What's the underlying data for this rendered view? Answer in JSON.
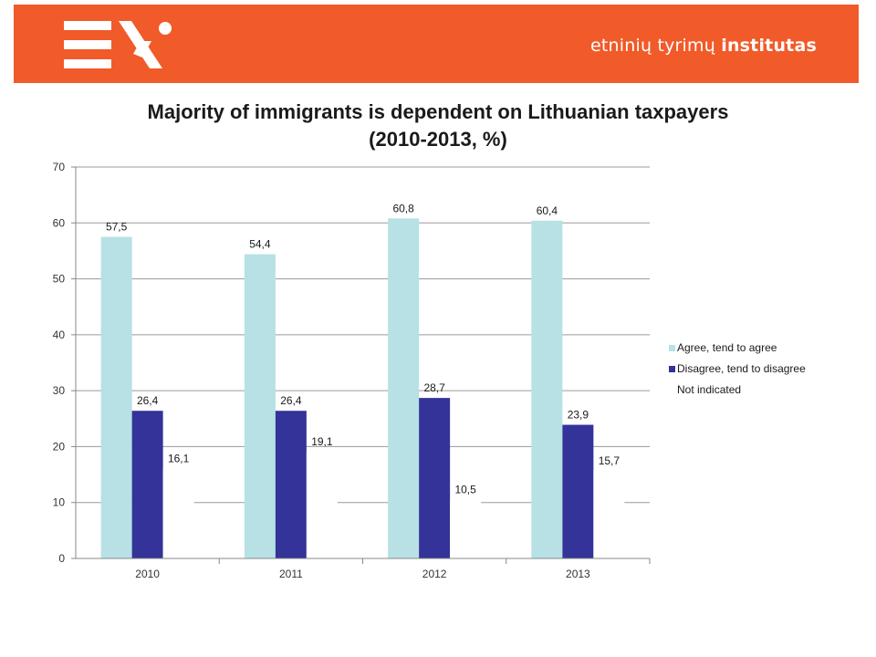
{
  "header": {
    "org_name_light": "etninių tyrimų",
    "org_name_bold": "institutas",
    "accent_color": "#f15a29",
    "logo": "EN-logo"
  },
  "chart_data": {
    "type": "bar",
    "title_line1": "Majority of immigrants is dependent on Lithuanian taxpayers",
    "title_line2": "(2010-2013, %)",
    "categories": [
      "2010",
      "2011",
      "2012",
      "2013"
    ],
    "ylim": [
      0,
      70
    ],
    "yticks": [
      0,
      10,
      20,
      30,
      40,
      50,
      60,
      70
    ],
    "grid": true,
    "legend_position": "right",
    "series": [
      {
        "name": "Agree, tend to agree",
        "values": [
          57.5,
          54.4,
          60.8,
          60.4
        ],
        "labels": [
          "57,5",
          "54,4",
          "60,8",
          "60,4"
        ],
        "color": "#b7e1e4"
      },
      {
        "name": "Disagree, tend to disagree",
        "values": [
          26.4,
          26.4,
          28.7,
          23.9
        ],
        "labels": [
          "26,4",
          "26,4",
          "28,7",
          "23,9"
        ],
        "color": "#333399"
      },
      {
        "name": "Not indicated",
        "values": [
          16.1,
          19.1,
          10.5,
          15.7
        ],
        "labels": [
          "16,1",
          "19,1",
          "10,5",
          "15,7"
        ],
        "color": "#ffffff"
      }
    ]
  }
}
